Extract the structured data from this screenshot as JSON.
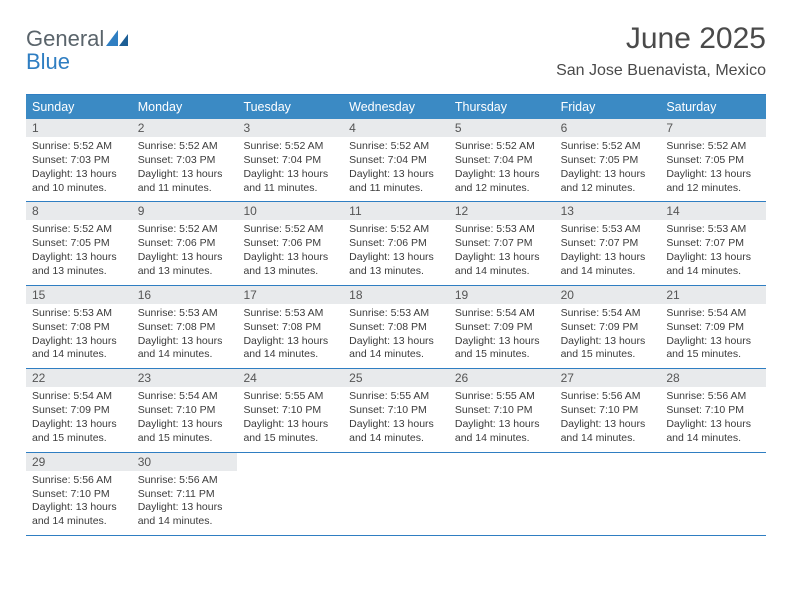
{
  "brand": {
    "general": "General",
    "blue": "Blue"
  },
  "month_title": "June 2025",
  "location": "San Jose Buenavista, Mexico",
  "colors": {
    "header_bg": "#3b8ac4",
    "rule": "#2f7ec2",
    "daynum_bg": "#e8eaec",
    "text": "#3b3b3b"
  },
  "weekdays": [
    "Sunday",
    "Monday",
    "Tuesday",
    "Wednesday",
    "Thursday",
    "Friday",
    "Saturday"
  ],
  "days": [
    {
      "n": 1,
      "sunrise": "5:52 AM",
      "sunset": "7:03 PM",
      "daylight": "13 hours and 10 minutes."
    },
    {
      "n": 2,
      "sunrise": "5:52 AM",
      "sunset": "7:03 PM",
      "daylight": "13 hours and 11 minutes."
    },
    {
      "n": 3,
      "sunrise": "5:52 AM",
      "sunset": "7:04 PM",
      "daylight": "13 hours and 11 minutes."
    },
    {
      "n": 4,
      "sunrise": "5:52 AM",
      "sunset": "7:04 PM",
      "daylight": "13 hours and 11 minutes."
    },
    {
      "n": 5,
      "sunrise": "5:52 AM",
      "sunset": "7:04 PM",
      "daylight": "13 hours and 12 minutes."
    },
    {
      "n": 6,
      "sunrise": "5:52 AM",
      "sunset": "7:05 PM",
      "daylight": "13 hours and 12 minutes."
    },
    {
      "n": 7,
      "sunrise": "5:52 AM",
      "sunset": "7:05 PM",
      "daylight": "13 hours and 12 minutes."
    },
    {
      "n": 8,
      "sunrise": "5:52 AM",
      "sunset": "7:05 PM",
      "daylight": "13 hours and 13 minutes."
    },
    {
      "n": 9,
      "sunrise": "5:52 AM",
      "sunset": "7:06 PM",
      "daylight": "13 hours and 13 minutes."
    },
    {
      "n": 10,
      "sunrise": "5:52 AM",
      "sunset": "7:06 PM",
      "daylight": "13 hours and 13 minutes."
    },
    {
      "n": 11,
      "sunrise": "5:52 AM",
      "sunset": "7:06 PM",
      "daylight": "13 hours and 13 minutes."
    },
    {
      "n": 12,
      "sunrise": "5:53 AM",
      "sunset": "7:07 PM",
      "daylight": "13 hours and 14 minutes."
    },
    {
      "n": 13,
      "sunrise": "5:53 AM",
      "sunset": "7:07 PM",
      "daylight": "13 hours and 14 minutes."
    },
    {
      "n": 14,
      "sunrise": "5:53 AM",
      "sunset": "7:07 PM",
      "daylight": "13 hours and 14 minutes."
    },
    {
      "n": 15,
      "sunrise": "5:53 AM",
      "sunset": "7:08 PM",
      "daylight": "13 hours and 14 minutes."
    },
    {
      "n": 16,
      "sunrise": "5:53 AM",
      "sunset": "7:08 PM",
      "daylight": "13 hours and 14 minutes."
    },
    {
      "n": 17,
      "sunrise": "5:53 AM",
      "sunset": "7:08 PM",
      "daylight": "13 hours and 14 minutes."
    },
    {
      "n": 18,
      "sunrise": "5:53 AM",
      "sunset": "7:08 PM",
      "daylight": "13 hours and 14 minutes."
    },
    {
      "n": 19,
      "sunrise": "5:54 AM",
      "sunset": "7:09 PM",
      "daylight": "13 hours and 15 minutes."
    },
    {
      "n": 20,
      "sunrise": "5:54 AM",
      "sunset": "7:09 PM",
      "daylight": "13 hours and 15 minutes."
    },
    {
      "n": 21,
      "sunrise": "5:54 AM",
      "sunset": "7:09 PM",
      "daylight": "13 hours and 15 minutes."
    },
    {
      "n": 22,
      "sunrise": "5:54 AM",
      "sunset": "7:09 PM",
      "daylight": "13 hours and 15 minutes."
    },
    {
      "n": 23,
      "sunrise": "5:54 AM",
      "sunset": "7:10 PM",
      "daylight": "13 hours and 15 minutes."
    },
    {
      "n": 24,
      "sunrise": "5:55 AM",
      "sunset": "7:10 PM",
      "daylight": "13 hours and 15 minutes."
    },
    {
      "n": 25,
      "sunrise": "5:55 AM",
      "sunset": "7:10 PM",
      "daylight": "13 hours and 14 minutes."
    },
    {
      "n": 26,
      "sunrise": "5:55 AM",
      "sunset": "7:10 PM",
      "daylight": "13 hours and 14 minutes."
    },
    {
      "n": 27,
      "sunrise": "5:56 AM",
      "sunset": "7:10 PM",
      "daylight": "13 hours and 14 minutes."
    },
    {
      "n": 28,
      "sunrise": "5:56 AM",
      "sunset": "7:10 PM",
      "daylight": "13 hours and 14 minutes."
    },
    {
      "n": 29,
      "sunrise": "5:56 AM",
      "sunset": "7:10 PM",
      "daylight": "13 hours and 14 minutes."
    },
    {
      "n": 30,
      "sunrise": "5:56 AM",
      "sunset": "7:11 PM",
      "daylight": "13 hours and 14 minutes."
    }
  ],
  "labels": {
    "sunrise": "Sunrise: ",
    "sunset": "Sunset: ",
    "daylight": "Daylight: "
  },
  "layout": {
    "first_weekday_index": 0,
    "trailing_empty": 5
  }
}
